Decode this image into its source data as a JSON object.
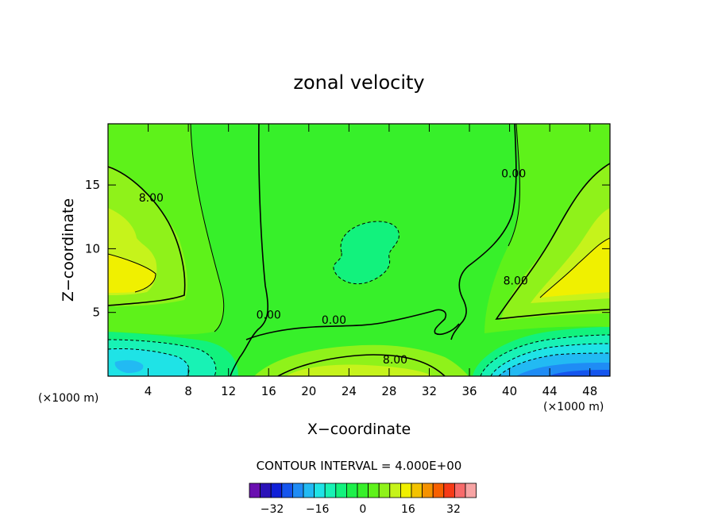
{
  "chart_data": {
    "type": "contour",
    "title": "zonal velocity",
    "xlabel": "X−coordinate",
    "ylabel": "Z−coordinate",
    "x_unit": "(×1000 m)",
    "x_unit_right": "(×1000 m)",
    "xlim": [
      0,
      50
    ],
    "ylim": [
      0,
      19.8
    ],
    "xticks": [
      4,
      8,
      12,
      16,
      20,
      24,
      28,
      32,
      36,
      40,
      44,
      48
    ],
    "yticks": [
      5,
      10,
      15
    ],
    "contour_interval_text": "CONTOUR INTERVAL = 4.000E+00",
    "contour_labels": [
      {
        "text": "8.00",
        "x": 4.3,
        "y": 13.7
      },
      {
        "text": "0.00",
        "x": 16.0,
        "y": 4.5
      },
      {
        "text": "0.00",
        "x": 22.5,
        "y": 4.1
      },
      {
        "text": "8.00",
        "x": 28.6,
        "y": 1.0
      },
      {
        "text": "0.00",
        "x": 40.4,
        "y": 15.6
      },
      {
        "text": "8.00",
        "x": 40.6,
        "y": 7.2
      }
    ],
    "colorbar": {
      "levels": [
        -40,
        -36,
        -32,
        -28,
        -24,
        -20,
        -16,
        -12,
        -8,
        -4,
        0,
        4,
        8,
        12,
        16,
        20,
        24,
        28,
        32,
        36,
        40
      ],
      "tick_labels": [
        "−32",
        "−16",
        "0",
        "16",
        "32"
      ],
      "tick_values": [
        -32,
        -16,
        0,
        16,
        32
      ],
      "colors": [
        "#6a0fb0",
        "#2a12b8",
        "#1020d8",
        "#1555ee",
        "#1f8cf5",
        "#22baf3",
        "#1fe3e6",
        "#18f2b5",
        "#12f27d",
        "#1df04a",
        "#37f02a",
        "#5ef21a",
        "#8ff21a",
        "#c6f31b",
        "#f0f000",
        "#f3c200",
        "#f59200",
        "#f76000",
        "#f73a16",
        "#f76b6b",
        "#f7a4a4"
      ]
    }
  }
}
